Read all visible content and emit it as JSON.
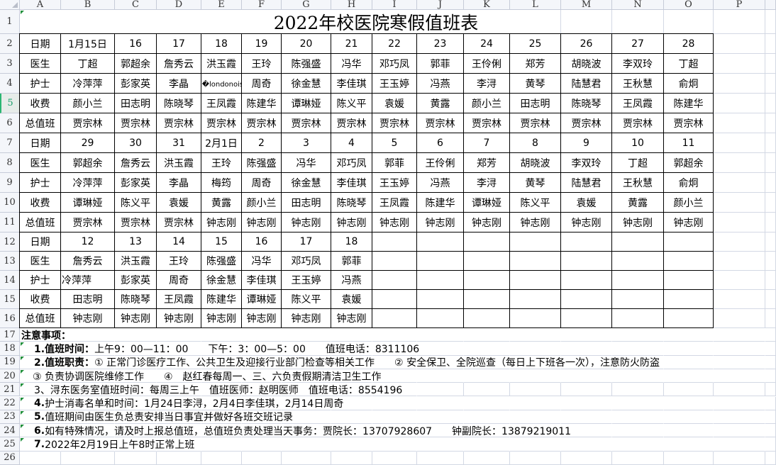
{
  "columns": [
    "A",
    "B",
    "C",
    "D",
    "E",
    "F",
    "G",
    "H",
    "I",
    "J",
    "K",
    "L",
    "M",
    "N",
    "O",
    "P"
  ],
  "row_numbers": [
    "1",
    "2",
    "3",
    "4",
    "5",
    "6",
    "7",
    "8",
    "9",
    "10",
    "11",
    "12",
    "13",
    "14",
    "15",
    "16",
    "17",
    "18",
    "19",
    "20",
    "21",
    "22",
    "23",
    "24",
    "25",
    "26"
  ],
  "selected_row": "5",
  "title": "2022年校医院寒假值班表",
  "schedule": [
    [
      "日期",
      "1月15日",
      "16",
      "17",
      "18",
      "19",
      "20",
      "21",
      "22",
      "23",
      "24",
      "25",
      "26",
      "27",
      "28"
    ],
    [
      "医生",
      "丁超",
      "郭超余",
      "詹秀云",
      "洪玉霞",
      "王玲",
      "陈强盛",
      "冯华",
      "邓巧凤",
      "郭菲",
      "王伶俐",
      "郑芳",
      "胡晓波",
      "李双玲",
      "丁超"
    ],
    [
      "护士",
      "冷萍萍",
      "彭家英",
      "李晶",
      "梅�londonoise",
      "周奇",
      "徐金慧",
      "李佳琪",
      "王玉婷",
      "冯燕",
      "李浔",
      "黄琴",
      "陆慧君",
      "王秋慧",
      "俞炯"
    ],
    [
      "收费",
      "颜小兰",
      "田志明",
      "陈晓琴",
      "王凤霞",
      "陈建华",
      "谭琳娅",
      "陈义平",
      "袁媛",
      "黄露",
      "颜小兰",
      "田志明",
      "陈晓琴",
      "王凤霞",
      "陈建华"
    ],
    [
      "总值班",
      "贾宗林",
      "贾宗林",
      "贾宗林",
      "贾宗林",
      "贾宗林",
      "贾宗林",
      "贾宗林",
      "贾宗林",
      "贾宗林",
      "贾宗林",
      "贾宗林",
      "贾宗林",
      "贾宗林",
      "贾宗林"
    ],
    [
      "日期",
      "29",
      "30",
      "31",
      "2月1日",
      "2",
      "3",
      "4",
      "5",
      "6",
      "7",
      "8",
      "9",
      "10",
      "11"
    ],
    [
      "医生",
      "郭超余",
      "詹秀云",
      "洪玉霞",
      "王玲",
      "陈强盛",
      "冯华",
      "邓巧凤",
      "郭菲",
      "王伶俐",
      "郑芳",
      "胡晓波",
      "李双玲",
      "丁超",
      "郭超余"
    ],
    [
      "护士",
      "冷萍萍",
      "彭家英",
      "李晶",
      "梅筠",
      "周奇",
      "徐金慧",
      "李佳琪",
      "王玉婷",
      "冯燕",
      "李浔",
      "黄琴",
      "陆慧君",
      "王秋慧",
      "俞炯"
    ],
    [
      "收费",
      "谭琳娅",
      "陈义平",
      "袁媛",
      "黄露",
      "颜小兰",
      "田志明",
      "陈晓琴",
      "王凤霞",
      "陈建华",
      "谭琳娅",
      "陈义平",
      "袁媛",
      "黄露",
      "颜小兰"
    ],
    [
      "总值班",
      "贾宗林",
      "贾宗林",
      "贾宗林",
      "钟志刚",
      "钟志刚",
      "钟志刚",
      "钟志刚",
      "钟志刚",
      "钟志刚",
      "钟志刚",
      "钟志刚",
      "钟志刚",
      "钟志刚",
      "钟志刚"
    ],
    [
      "日期",
      "12",
      "13",
      "14",
      "15",
      "16",
      "17",
      "18",
      "",
      "",
      "",
      "",
      "",
      "",
      ""
    ],
    [
      "医生",
      "詹秀云",
      "洪玉霞",
      "王玲",
      "陈强盛",
      "冯华",
      "邓巧凤",
      "郭菲",
      "",
      "",
      "",
      "",
      "",
      "",
      ""
    ],
    [
      "护士",
      "冷萍萍",
      "彭家英",
      "周奇",
      "徐金慧",
      "李佳琪",
      "王玉婷",
      "冯燕",
      "",
      "",
      "",
      "",
      "",
      "",
      ""
    ],
    [
      "收费",
      "田志明",
      "陈晓琴",
      "王凤霞",
      "陈建华",
      "谭琳娅",
      "陈义平",
      "袁媛",
      "",
      "",
      "",
      "",
      "",
      "",
      ""
    ],
    [
      "总值班",
      "钟志刚",
      "钟志刚",
      "钟志刚",
      "钟志刚",
      "钟志刚",
      "钟志刚",
      "钟志刚",
      "",
      "",
      "",
      "",
      "",
      "",
      ""
    ]
  ],
  "notes": [
    {
      "bold": "注意事项：",
      "text": ""
    },
    {
      "bold": "1.值班时间：",
      "text": "上午9：00—11：00　　下午：3：00—5：00　　值班电话：8311106"
    },
    {
      "bold": "2.值班职责：",
      "text": "① 正常门诊医疗工作、公共卫生及迎接行业部门检查等相关工作　　② 安全保卫、全院巡查（每日上下班各一次），注意防火防盗"
    },
    {
      "bold": "",
      "text": "③ 负责协调医院维修工作　　④　赵红春每周一、三、六负责假期清洁卫生工作"
    },
    {
      "bold": "",
      "text": "3、浔东医务室值班时间：每周三上午　值班医师：赵明医师　值班电话：8554196"
    },
    {
      "bold": "4.",
      "text": "护士消毒名单和时间：1月24日李浔，2月4日李佳琪，2月14日周奇"
    },
    {
      "bold": "5.",
      "text": "值班期间由医生负总责安排当日事宜并做好各班交班记录"
    },
    {
      "bold": "6.",
      "text": "如有特殊情况，请及时上报总值班，总值班负责处理当天事务：贾院长：13707928607　　钟副院长：13879219011"
    },
    {
      "bold": "7.",
      "text": "2022年2月19日上午8时正常上班"
    }
  ],
  "colors": {
    "grid": "#d3d8e4",
    "table_border": "#000000",
    "selected_row_header": "#1a9f6a",
    "header_bg": "#f4f6fa"
  }
}
